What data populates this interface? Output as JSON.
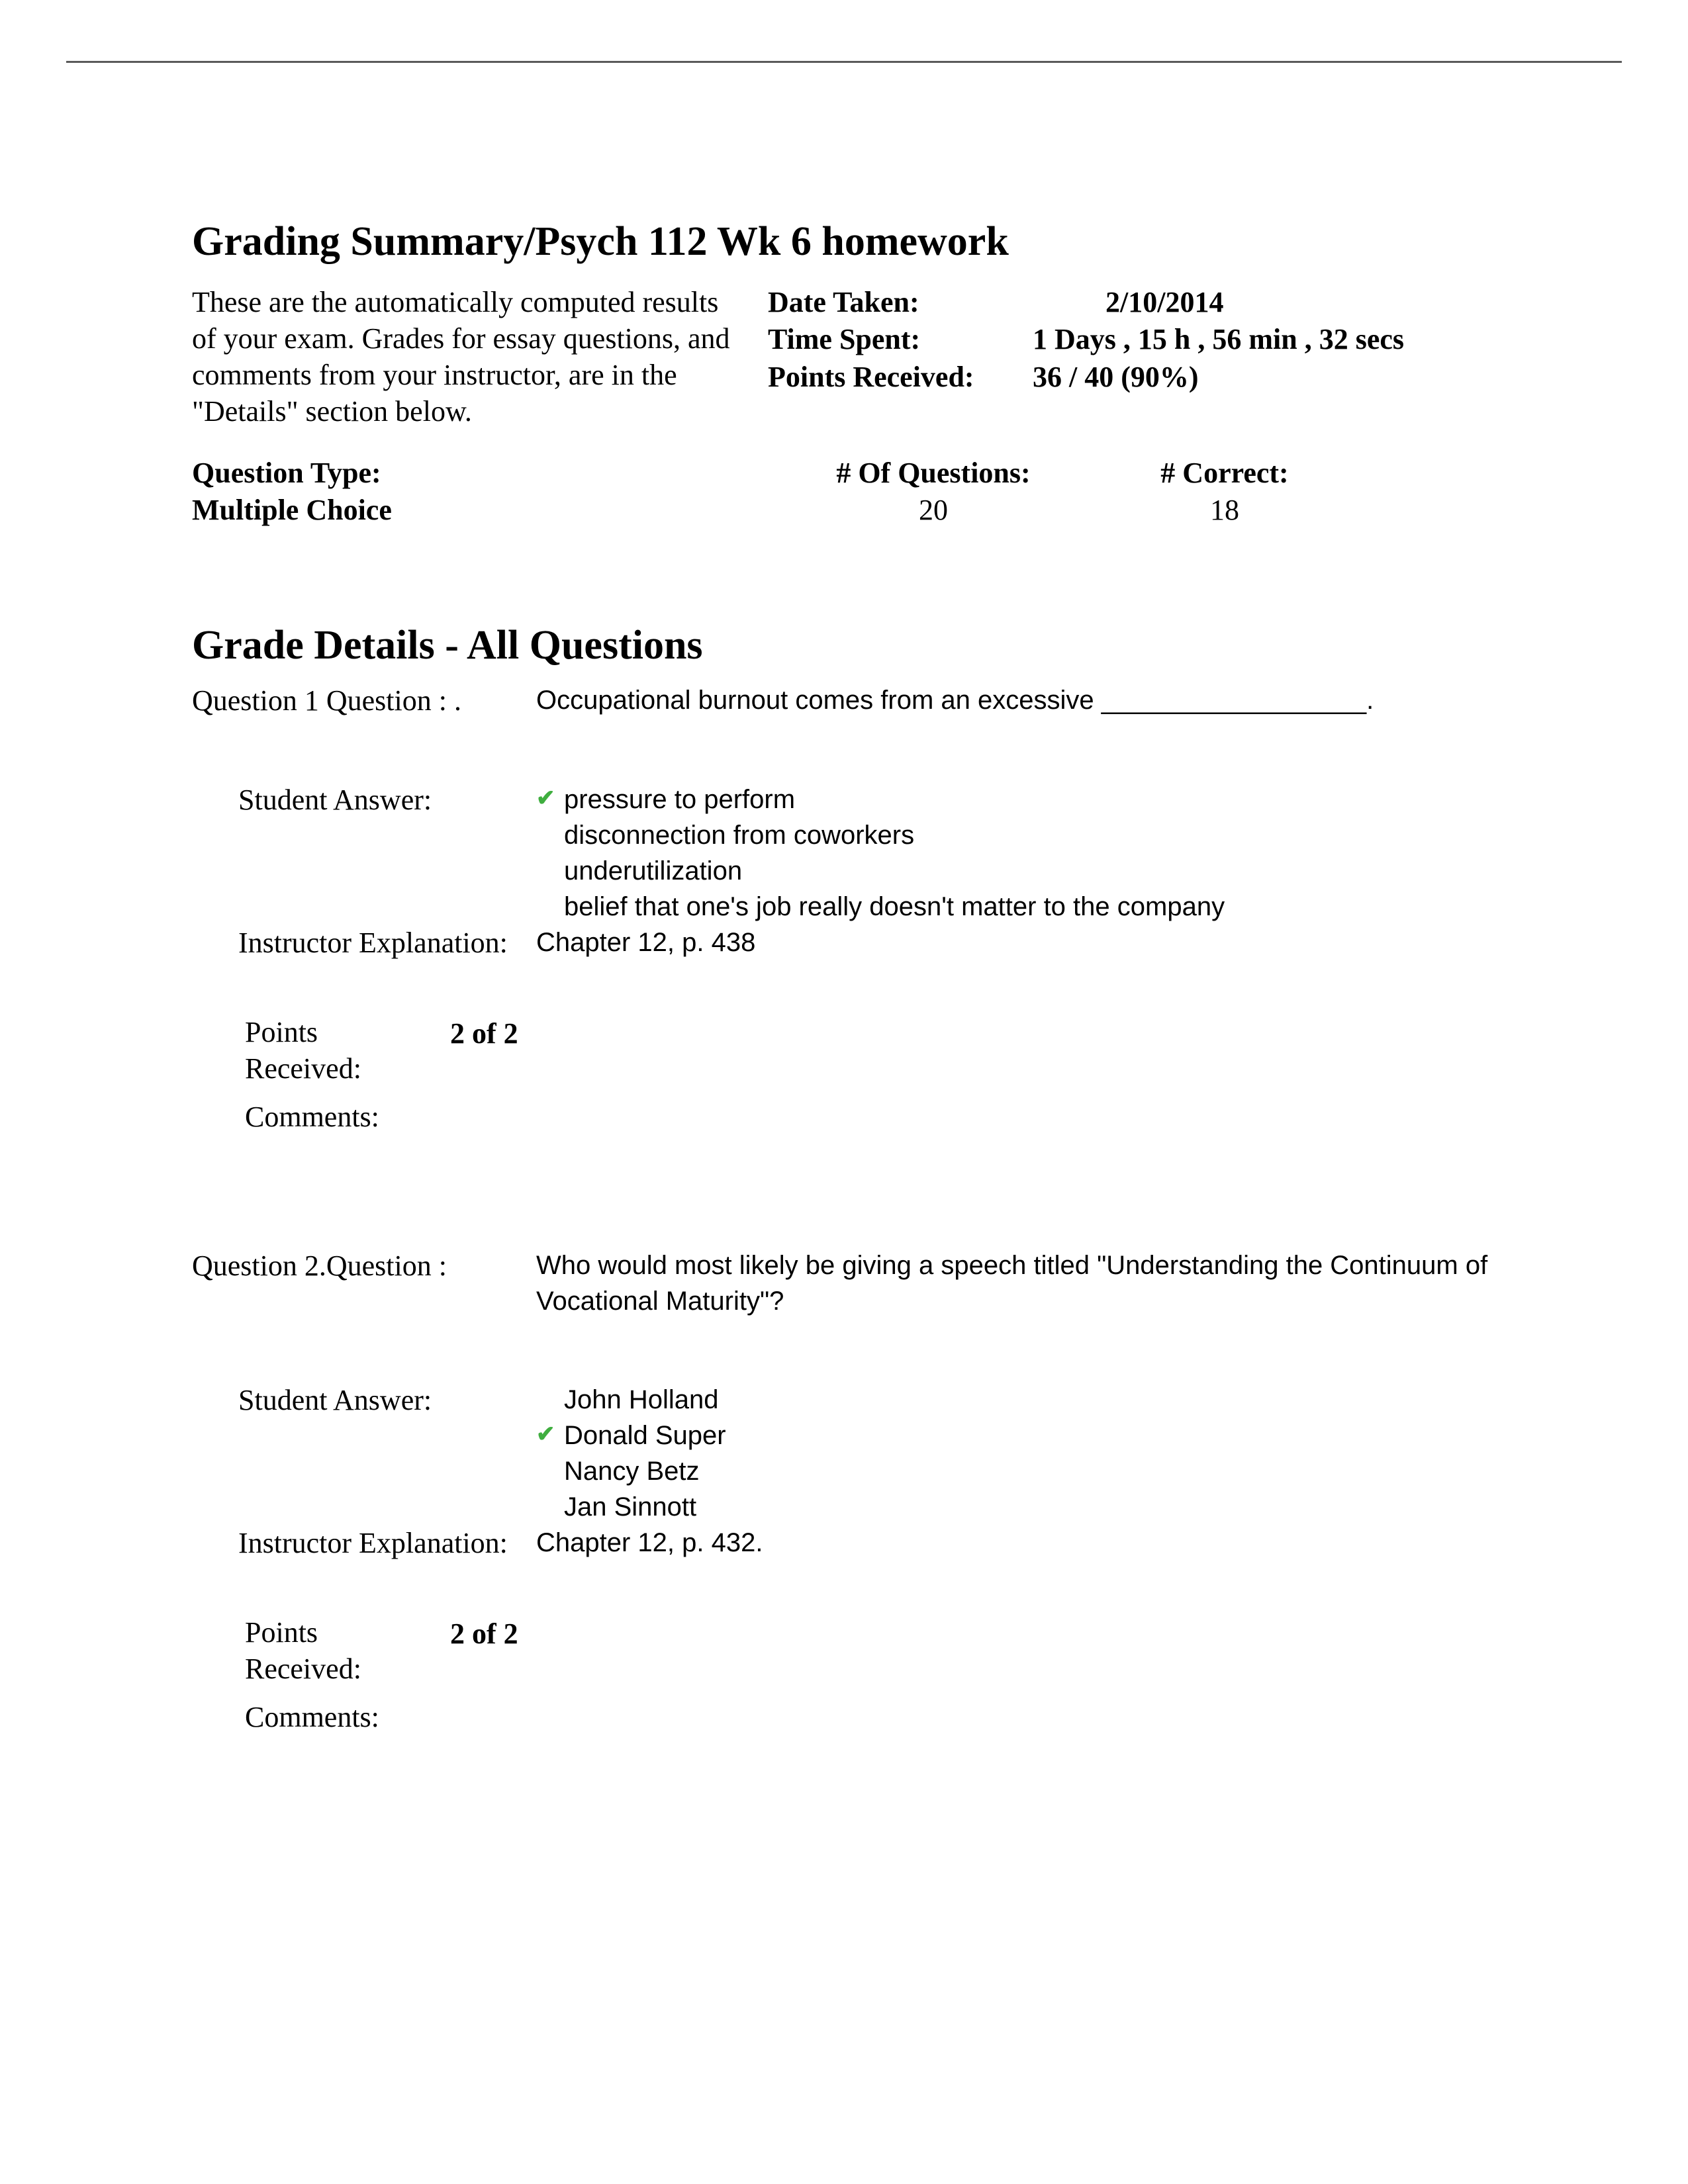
{
  "summary": {
    "title": "Grading Summary/Psych 112 Wk 6 homework",
    "intro": "These are the automatically computed results of your exam. Grades for essay questions, and comments from your instructor, are in the \"Details\" section below.",
    "meta": {
      "date_taken_label": "Date Taken:",
      "date_taken_value": "2/10/2014",
      "time_spent_label": "Time Spent:",
      "time_spent_value": "1 Days , 15 h , 56 min , 32 secs",
      "points_received_label": "Points Received:",
      "points_received_value": "36 / 40  (90%)"
    },
    "qtype": {
      "header_type": "Question Type:",
      "header_count": "# Of Questions:",
      "header_correct": "# Correct:",
      "type_value": "Multiple Choice",
      "count_value": "20",
      "correct_value": "18"
    }
  },
  "details": {
    "title": "Grade Details - All Questions",
    "labels": {
      "student_answer": "Student Answer:",
      "instructor_explanation": "Instructor Explanation:",
      "points_received": "Points Received:",
      "comments": "Comments:"
    }
  },
  "questions": [
    {
      "number_label": "Question 1 Question : .",
      "prompt": "Occupational burnout comes from an excessive __________________.",
      "answers": [
        {
          "text": "pressure to perform",
          "correct": true
        },
        {
          "text": "disconnection from coworkers",
          "correct": false
        },
        {
          "text": "underutilization",
          "correct": false
        },
        {
          "text": "belief that one's job really doesn't matter to the company",
          "correct": false
        }
      ],
      "instructor_explanation": "Chapter 12, p. 438",
      "points": "2 of 2",
      "comments": ""
    },
    {
      "number_label": "Question 2.Question :",
      "prompt": "Who would most likely be giving a speech titled \"Understanding the Continuum of Vocational Maturity\"?",
      "answers": [
        {
          "text": "John Holland",
          "correct": false
        },
        {
          "text": "Donald Super",
          "correct": true
        },
        {
          "text": "Nancy Betz",
          "correct": false
        },
        {
          "text": "Jan Sinnott",
          "correct": false
        }
      ],
      "instructor_explanation": "Chapter 12, p. 432.",
      "points": "2 of 2",
      "comments": ""
    }
  ],
  "colors": {
    "text": "#000000",
    "rule": "#5a5a5a",
    "correct_mark": "#3fae3f",
    "background": "#ffffff"
  }
}
